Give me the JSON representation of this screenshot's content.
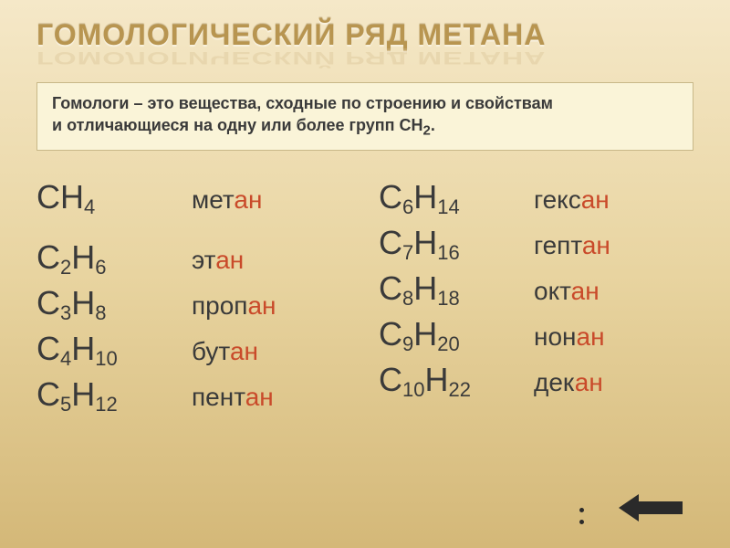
{
  "title": "ГОМОЛОГИЧЕСКИЙ РЯД МЕТАНА",
  "definition": {
    "line1": "Гомологи – это вещества, сходные по строению и свойствам",
    "line2_prefix": "и отличающиеся на одну или более групп СН",
    "line2_sub": "2",
    "line2_suffix": "."
  },
  "left_compounds": [
    {
      "formula_parts": [
        "СН",
        "4"
      ],
      "name_root": "мет",
      "name_suffix": "ан",
      "big": true
    },
    {
      "formula_parts": [
        "С",
        "2",
        "Н",
        "6"
      ],
      "name_root": "эт",
      "name_suffix": "ан"
    },
    {
      "formula_parts": [
        "С",
        "3",
        "Н",
        "8"
      ],
      "name_root": "проп",
      "name_suffix": "ан"
    },
    {
      "formula_parts": [
        "С",
        "4",
        "Н",
        "10"
      ],
      "name_root": "бут",
      "name_suffix": "ан"
    },
    {
      "formula_parts": [
        "С",
        "5",
        "Н",
        "12"
      ],
      "name_root": "пент",
      "name_suffix": "ан"
    }
  ],
  "right_compounds": [
    {
      "formula_parts": [
        "С",
        "6",
        "Н",
        "14"
      ],
      "name_root": "гекс",
      "name_suffix": "ан"
    },
    {
      "formula_parts": [
        "С",
        "7",
        "Н",
        "16"
      ],
      "name_root": "гепт",
      "name_suffix": "ан"
    },
    {
      "formula_parts": [
        "С",
        "8",
        "Н",
        "18"
      ],
      "name_root": "окт",
      "name_suffix": "ан"
    },
    {
      "formula_parts": [
        "С",
        "9",
        "Н",
        "20"
      ],
      "name_root": "нон",
      "name_suffix": "ан"
    },
    {
      "formula_parts": [
        "С",
        "10",
        "Н",
        "22"
      ],
      "name_root": "дек",
      "name_suffix": "ан"
    }
  ],
  "colors": {
    "bg_top": "#f5e8c8",
    "bg_bottom": "#d4b878",
    "title": "#b89550",
    "text": "#3a3a3a",
    "suffix": "#c94a2a",
    "box_bg": "#faf4d8"
  }
}
